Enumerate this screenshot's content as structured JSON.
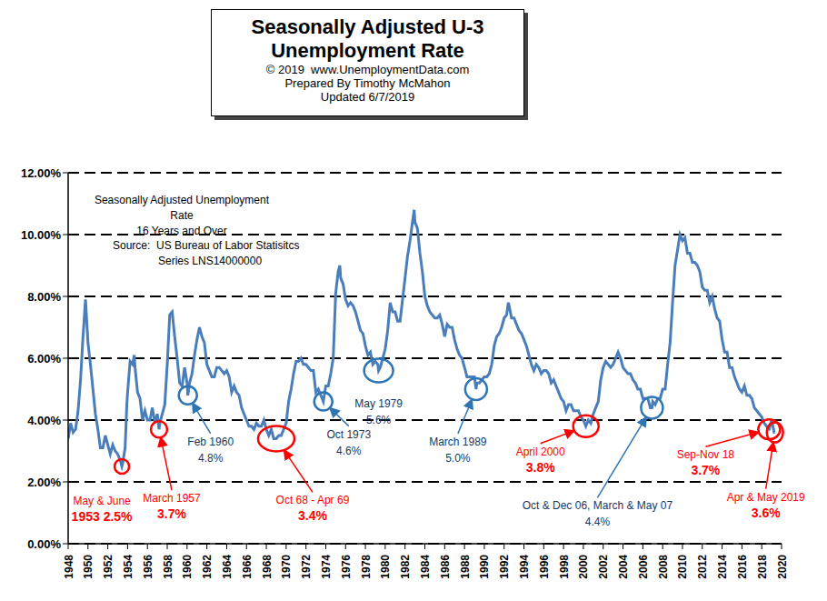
{
  "chart_data": {
    "type": "line",
    "title": "Seasonally Adjusted U-3 Unemployment Rate",
    "subtitle": [
      "© 2019  www.UnemploymentData.com",
      "Prepared By Timothy McMahon",
      "Updated 6/7/2019"
    ],
    "notes": [
      [
        "Seasonally Adjusted Unemployment Rate",
        "16 Years and Over"
      ],
      [
        "Source:  US Bureau of Labor Statisitcs",
        "Series LNS14000000"
      ]
    ],
    "color": "#4a7ebb",
    "marker": "none",
    "line_style": "solid",
    "grid": true,
    "xlim": [
      1948,
      2020
    ],
    "xticks": [
      1948,
      1950,
      1952,
      1954,
      1956,
      1958,
      1960,
      1962,
      1964,
      1966,
      1968,
      1970,
      1972,
      1974,
      1976,
      1978,
      1980,
      1982,
      1984,
      1986,
      1988,
      1990,
      1992,
      1994,
      1996,
      1998,
      2000,
      2002,
      2004,
      2006,
      2008,
      2010,
      2012,
      2014,
      2016,
      2018,
      2020
    ],
    "ylim": [
      0,
      12
    ],
    "yticks": [
      {
        "value": 0,
        "label": "0.00%"
      },
      {
        "value": 2,
        "label": "2.00%"
      },
      {
        "value": 4,
        "label": "4.00%"
      },
      {
        "value": 6,
        "label": "6.00%"
      },
      {
        "value": 8,
        "label": "8.00%"
      },
      {
        "value": 10,
        "label": "10.00%"
      },
      {
        "value": 12,
        "label": "12.00%"
      }
    ],
    "x": [
      1948,
      1948.25,
      1948.5,
      1948.75,
      1949,
      1949.25,
      1949.5,
      1949.75,
      1950,
      1950.25,
      1950.5,
      1950.75,
      1951,
      1951.25,
      1951.5,
      1951.75,
      1952,
      1952.25,
      1952.5,
      1952.75,
      1953,
      1953.25,
      1953.42,
      1953.5,
      1953.75,
      1953.92,
      1954,
      1954.25,
      1954.5,
      1954.67,
      1954.75,
      1955,
      1955.25,
      1955.5,
      1955.75,
      1956,
      1956.25,
      1956.5,
      1956.75,
      1957,
      1957.17,
      1957.25,
      1957.5,
      1957.75,
      1958,
      1958.25,
      1958.5,
      1958.75,
      1959,
      1959.25,
      1959.5,
      1959.75,
      1960,
      1960.08,
      1960.25,
      1960.5,
      1960.75,
      1961,
      1961.25,
      1961.5,
      1961.75,
      1962,
      1962.25,
      1962.5,
      1962.75,
      1963,
      1963.25,
      1963.5,
      1963.75,
      1964,
      1964.25,
      1964.5,
      1964.75,
      1965,
      1965.25,
      1965.5,
      1965.75,
      1966,
      1966.25,
      1966.5,
      1966.75,
      1967,
      1967.25,
      1967.5,
      1967.75,
      1968,
      1968.25,
      1968.5,
      1968.75,
      1969,
      1969.25,
      1969.5,
      1969.75,
      1970,
      1970.25,
      1970.5,
      1970.75,
      1971,
      1971.25,
      1971.5,
      1971.75,
      1972,
      1972.25,
      1972.5,
      1972.75,
      1973,
      1973.25,
      1973.5,
      1973.75,
      1974,
      1974.25,
      1974.5,
      1974.75,
      1975,
      1975.25,
      1975.42,
      1975.5,
      1975.75,
      1976,
      1976.25,
      1976.5,
      1976.75,
      1977,
      1977.25,
      1977.5,
      1977.75,
      1978,
      1978.25,
      1978.5,
      1978.75,
      1979,
      1979.25,
      1979.33,
      1979.5,
      1979.75,
      1980,
      1980.25,
      1980.5,
      1980.75,
      1981,
      1981.25,
      1981.5,
      1981.75,
      1982,
      1982.25,
      1982.5,
      1982.75,
      1982.92,
      1983,
      1983.25,
      1983.5,
      1983.75,
      1984,
      1984.25,
      1984.5,
      1984.75,
      1985,
      1985.25,
      1985.5,
      1985.75,
      1986,
      1986.25,
      1986.5,
      1986.75,
      1987,
      1987.25,
      1987.5,
      1987.75,
      1988,
      1988.25,
      1988.5,
      1988.75,
      1989,
      1989.17,
      1989.25,
      1989.5,
      1989.75,
      1990,
      1990.25,
      1990.5,
      1990.75,
      1991,
      1991.25,
      1991.5,
      1991.75,
      1992,
      1992.25,
      1992.42,
      1992.5,
      1992.75,
      1993,
      1993.25,
      1993.5,
      1993.75,
      1994,
      1994.25,
      1994.5,
      1994.75,
      1995,
      1995.25,
      1995.5,
      1995.75,
      1996,
      1996.25,
      1996.5,
      1996.75,
      1997,
      1997.25,
      1997.5,
      1997.75,
      1998,
      1998.25,
      1998.5,
      1998.75,
      1999,
      1999.25,
      1999.5,
      1999.75,
      2000,
      2000.25,
      2000.5,
      2000.75,
      2001,
      2001.25,
      2001.5,
      2001.75,
      2002,
      2002.25,
      2002.5,
      2002.75,
      2003,
      2003.25,
      2003.5,
      2003.75,
      2004,
      2004.25,
      2004.5,
      2004.75,
      2005,
      2005.25,
      2005.5,
      2005.75,
      2006,
      2006.25,
      2006.5,
      2006.75,
      2006.92,
      2007,
      2007.25,
      2007.5,
      2007.75,
      2008,
      2008.25,
      2008.5,
      2008.75,
      2009,
      2009.25,
      2009.5,
      2009.75,
      2010,
      2010.25,
      2010.5,
      2010.75,
      2011,
      2011.25,
      2011.5,
      2011.75,
      2012,
      2012.25,
      2012.5,
      2012.75,
      2013,
      2013.25,
      2013.5,
      2013.75,
      2014,
      2014.25,
      2014.5,
      2014.75,
      2015,
      2015.25,
      2015.5,
      2015.75,
      2016,
      2016.25,
      2016.5,
      2016.75,
      2017,
      2017.25,
      2017.5,
      2017.75,
      2018,
      2018.25,
      2018.5,
      2018.67,
      2018.75,
      2019,
      2019.25,
      2019.33
    ],
    "values": [
      3.4,
      3.9,
      3.6,
      3.7,
      4.3,
      5.3,
      6.7,
      7.9,
      6.5,
      5.8,
      5.0,
      4.2,
      3.7,
      3.1,
      3.1,
      3.5,
      3.2,
      2.9,
      3.2,
      3.0,
      2.9,
      2.7,
      2.5,
      2.6,
      3.1,
      4.5,
      4.9,
      5.9,
      5.8,
      6.1,
      5.7,
      4.9,
      4.7,
      4.0,
      4.3,
      4.0,
      4.0,
      4.4,
      3.9,
      4.2,
      3.7,
      3.9,
      4.2,
      4.5,
      5.8,
      7.4,
      7.5,
      6.7,
      6.0,
      5.2,
      5.1,
      5.7,
      5.2,
      4.8,
      5.2,
      5.5,
      6.1,
      6.6,
      7.0,
      6.7,
      6.5,
      5.8,
      5.6,
      5.4,
      5.4,
      5.7,
      5.7,
      5.6,
      5.5,
      5.6,
      5.4,
      4.9,
      5.1,
      4.9,
      4.8,
      4.4,
      4.2,
      4.0,
      3.8,
      3.8,
      3.7,
      3.9,
      3.8,
      3.8,
      4.0,
      3.7,
      3.5,
      3.7,
      3.4,
      3.4,
      3.5,
      3.5,
      3.7,
      3.9,
      4.6,
      5.0,
      5.5,
      5.9,
      5.9,
      6.0,
      5.8,
      5.8,
      5.7,
      5.6,
      5.6,
      4.9,
      5.0,
      4.8,
      4.6,
      5.1,
      5.1,
      5.5,
      6.0,
      8.1,
      8.8,
      9.0,
      8.6,
      8.4,
      7.9,
      7.7,
      7.8,
      7.7,
      7.5,
      7.2,
      6.9,
      6.8,
      6.4,
      6.1,
      6.2,
      5.8,
      5.9,
      5.8,
      5.6,
      5.7,
      6.0,
      6.3,
      6.9,
      7.8,
      7.5,
      7.5,
      7.2,
      7.2,
      7.9,
      8.6,
      9.3,
      9.8,
      10.4,
      10.8,
      10.4,
      10.2,
      9.4,
      8.8,
      8.0,
      7.7,
      7.5,
      7.4,
      7.3,
      7.3,
      7.4,
      7.1,
      6.7,
      7.1,
      7.0,
      7.0,
      6.6,
      6.3,
      6.1,
      6.0,
      5.7,
      5.4,
      5.4,
      5.4,
      5.4,
      5.0,
      5.2,
      5.2,
      5.3,
      5.4,
      5.4,
      5.5,
      5.8,
      6.4,
      6.7,
      6.8,
      7.0,
      7.3,
      7.4,
      7.8,
      7.7,
      7.3,
      7.3,
      7.1,
      6.9,
      6.8,
      6.6,
      6.4,
      6.1,
      5.8,
      5.6,
      5.8,
      5.7,
      5.5,
      5.6,
      5.6,
      5.5,
      5.2,
      5.3,
      5.1,
      4.9,
      4.7,
      4.6,
      4.3,
      4.5,
      4.5,
      4.3,
      4.3,
      4.3,
      4.1,
      4.0,
      3.8,
      4.0,
      3.9,
      4.2,
      4.4,
      4.6,
      5.3,
      5.7,
      5.9,
      5.8,
      5.7,
      5.8,
      6.0,
      6.2,
      6.0,
      5.7,
      5.6,
      5.5,
      5.5,
      5.3,
      5.2,
      5.0,
      5.0,
      4.7,
      4.7,
      4.7,
      4.4,
      4.4,
      4.6,
      4.5,
      4.7,
      4.7,
      5.0,
      5.0,
      5.8,
      6.5,
      7.8,
      9.0,
      9.5,
      10.0,
      9.8,
      9.9,
      9.4,
      9.4,
      9.1,
      9.1,
      9.0,
      8.8,
      8.3,
      8.2,
      8.2,
      7.8,
      8.0,
      7.6,
      7.3,
      7.2,
      6.6,
      6.2,
      6.2,
      5.7,
      5.7,
      5.4,
      5.2,
      5.0,
      4.9,
      5.1,
      4.8,
      4.8,
      4.7,
      4.4,
      4.3,
      4.2,
      4.1,
      3.9,
      3.8,
      3.7,
      3.7,
      4.0,
      3.6,
      3.6
    ],
    "annotations": [
      {
        "text": [
          "May & June",
          "1953 2.5%"
        ],
        "x": 1953.42,
        "y": 2.5,
        "color": "#ff0000"
      },
      {
        "text": [
          "March 1957",
          "3.7%"
        ],
        "x": 1957.17,
        "y": 3.7,
        "color": "#ff0000"
      },
      {
        "text": [
          "Feb 1960",
          "4.8%"
        ],
        "x": 1960.08,
        "y": 4.8,
        "color": "#2e75b6"
      },
      {
        "text": [
          "Oct 68 - Apr 69",
          "3.4%"
        ],
        "x": 1969.0,
        "y": 3.4,
        "color": "#ff0000"
      },
      {
        "text": [
          "Oct 1973",
          "4.6%"
        ],
        "x": 1973.75,
        "y": 4.6,
        "color": "#2e75b6"
      },
      {
        "text": [
          "May 1979",
          "5.6%"
        ],
        "x": 1979.33,
        "y": 5.6,
        "color": "#2e75b6"
      },
      {
        "text": [
          "March 1989",
          "5.0%"
        ],
        "x": 1989.17,
        "y": 5.0,
        "color": "#2e75b6"
      },
      {
        "text": [
          "April 2000",
          "3.8%"
        ],
        "x": 2000.25,
        "y": 3.8,
        "color": "#ff0000"
      },
      {
        "text": [
          "Oct & Dec 06, March & May 07",
          "4.4%"
        ],
        "x": 2006.92,
        "y": 4.4,
        "color": "#2e75b6"
      },
      {
        "text": [
          "Sep-Nov 18",
          "3.7%"
        ],
        "x": 2018.75,
        "y": 3.7,
        "color": "#ff0000"
      },
      {
        "text": [
          "Apr & May 2019",
          "3.6%"
        ],
        "x": 2019.33,
        "y": 3.6,
        "color": "#ff0000"
      }
    ]
  }
}
